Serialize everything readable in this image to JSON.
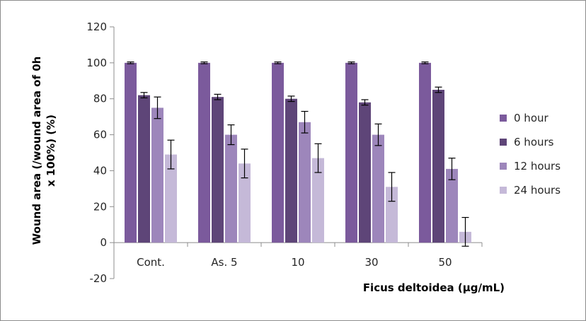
{
  "chart_data": {
    "type": "bar",
    "title": "",
    "xlabel": "Ficus deltoidea (μg/mL)",
    "ylabel_lines": [
      "Wound area (/wound area of 0h",
      "x 100%)  (%)"
    ],
    "ylim": [
      -20,
      120
    ],
    "yticks": [
      -20,
      0,
      20,
      40,
      60,
      80,
      100,
      120
    ],
    "grid": false,
    "legend_position": "right",
    "categories": [
      "Cont.",
      "As. 5",
      "10",
      "30",
      "50"
    ],
    "series": [
      {
        "name": "0 hour",
        "color": "#7b5a9c",
        "values": [
          100,
          100,
          100,
          100,
          100
        ],
        "errors": [
          0.5,
          0.5,
          0.5,
          0.5,
          0.5
        ]
      },
      {
        "name": "6 hours",
        "color": "#5e4578",
        "values": [
          82,
          81,
          80,
          78,
          85
        ],
        "errors": [
          1.5,
          1.5,
          1.5,
          1.5,
          1.5
        ]
      },
      {
        "name": "12 hours",
        "color": "#9d86bb",
        "values": [
          75,
          60,
          67,
          60,
          41
        ],
        "errors": [
          6,
          5.5,
          6,
          6,
          6
        ]
      },
      {
        "name": "24 hours",
        "color": "#c5b9d8",
        "values": [
          49,
          44,
          47,
          31,
          6
        ],
        "errors": [
          8,
          8,
          8,
          8,
          8
        ]
      }
    ]
  }
}
